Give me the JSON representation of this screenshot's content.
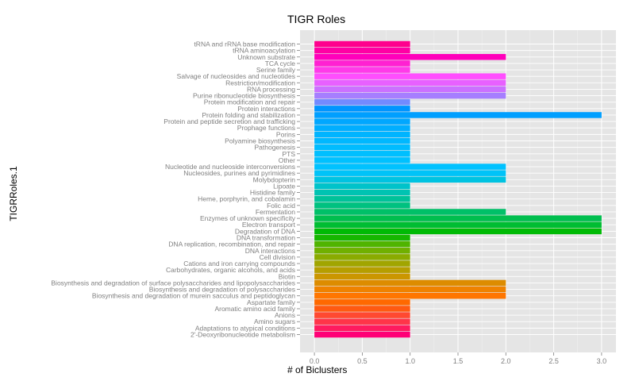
{
  "chart_data": {
    "type": "bar",
    "orientation": "horizontal",
    "title": "TIGR Roles",
    "xlabel": "# of Biclusters",
    "ylabel": "TIGRRoles.1",
    "xlim": [
      0,
      3
    ],
    "x_ticks": [
      "0.0",
      "0.5",
      "1.0",
      "1.5",
      "2.0",
      "2.5",
      "3.0"
    ],
    "grid": true,
    "legend": "none",
    "categories": [
      "2'-Deoxyribonucleotide metabolism",
      "Adaptations to atypical conditions",
      "Amino sugars",
      "Anions",
      "Aromatic amino acid family",
      "Aspartate family",
      "Biosynthesis and degradation of murein sacculus and peptidoglycan",
      "Biosynthesis and degradation of polysaccharides",
      "Biosynthesis and degradation of surface polysaccharides and lipopolysaccharides",
      "Biotin",
      "Carbohydrates, organic alcohols, and acids",
      "Cations and iron carrying compounds",
      "Cell division",
      "DNA interactions",
      "DNA replication, recombination, and repair",
      "DNA transformation",
      "Degradation of DNA",
      "Electron transport",
      "Enzymes of unknown specificity",
      "Fermentation",
      "Folic acid",
      "Heme, porphyrin, and cobalamin",
      "Histidine family",
      "Lipoate",
      "Molybdopterin",
      "Nucleosides, purines and pyrimidines",
      "Nucleotide and nucleoside interconversions",
      "Other",
      "PTS",
      "Pathogenesis",
      "Polyamine biosynthesis",
      "Porins",
      "Prophage functions",
      "Protein and peptide secretion and trafficking",
      "Protein folding and stabilization",
      "Protein interactions",
      "Protein modification and repair",
      "Purine ribonucleotide biosynthesis",
      "RNA processing",
      "Restriction/modification",
      "Salvage of nucleosides and nucleotides",
      "Serine family",
      "TCA cycle",
      "Unknown substrate",
      "tRNA aminoacylation",
      "tRNA and rRNA base modification"
    ],
    "values": [
      1,
      1,
      1,
      1,
      1,
      1,
      2,
      2,
      2,
      1,
      1,
      1,
      1,
      1,
      1,
      1,
      3,
      3,
      3,
      2,
      1,
      1,
      1,
      1,
      2,
      2,
      2,
      1,
      1,
      1,
      1,
      1,
      1,
      1,
      3,
      1,
      1,
      2,
      2,
      2,
      2,
      1,
      1,
      2,
      1,
      1
    ],
    "colors": {
      "panel_background": "#e5e5e5",
      "grid_major": "#ffffff",
      "grid_minor": "#f2f2f2"
    }
  }
}
